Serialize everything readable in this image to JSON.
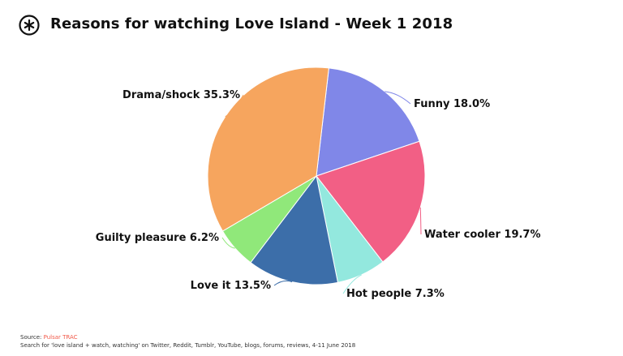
{
  "header": {
    "logo_icon": "asterisk-circle-icon",
    "title": "Reasons for watching Love Island - Week 1 2018"
  },
  "chart_data": {
    "type": "pie",
    "title": "Reasons for watching Love Island - Week 1 2018",
    "slices": [
      {
        "label": "Funny 18.0%",
        "name": "Funny",
        "value": 18.0,
        "color": "#8087e8"
      },
      {
        "label": "Water cooler 19.7%",
        "name": "Water cooler",
        "value": 19.7,
        "color": "#f25f85"
      },
      {
        "label": "Hot people 7.3%",
        "name": "Hot people",
        "value": 7.3,
        "color": "#93e8de"
      },
      {
        "label": "Love it 13.5%",
        "name": "Love it",
        "value": 13.5,
        "color": "#3c6ea9"
      },
      {
        "label": "Guilty pleasure 6.2%",
        "name": "Guilty pleasure",
        "value": 6.2,
        "color": "#90e87a"
      },
      {
        "label": "Drama/shock 35.3%",
        "name": "Drama/shock",
        "value": 35.3,
        "color": "#f6a55e"
      }
    ]
  },
  "footer": {
    "source_label": "Source:",
    "source_name": "Pulsar TRAC",
    "note": "Search for 'love island + watch, watching' on Twitter, Reddit, Tumblr, YouTube, blogs, forums, reviews, 4-11 June 2018"
  }
}
